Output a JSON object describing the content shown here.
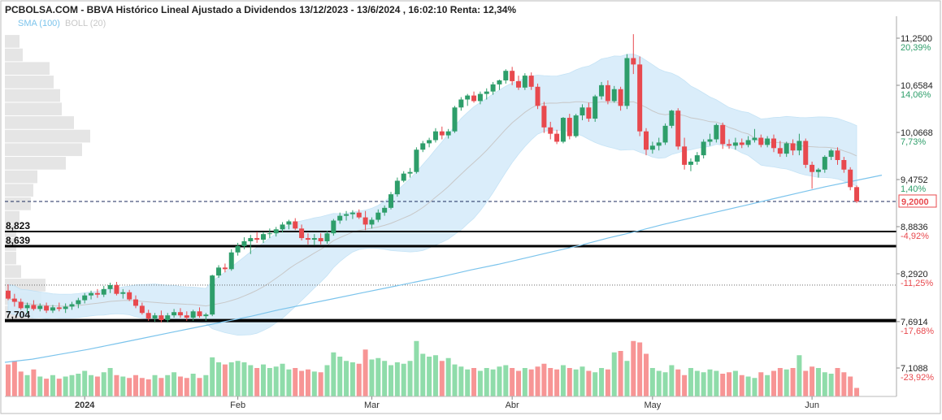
{
  "chart_data": {
    "type": "candlestick",
    "title": "PCBOLSA.COM - BBVA Histórico Lineal Ajustado a Dividendos 13/12/2023 - 13/6/2024 , 16:02:10 Renta: 12,34%",
    "legend": [
      {
        "label": "SMA (100)",
        "color": "#7cc4ec"
      },
      {
        "label": "BOLL (20)",
        "color": "#c8c8c8"
      }
    ],
    "ylim": [
      6.85,
      11.55
    ],
    "last_price": {
      "value": 9.2,
      "label": "9,2000",
      "color": "#e8494e"
    },
    "price_ticks": [
      {
        "value": 11.25,
        "label": "11,2500",
        "pct": "20,39%",
        "pct_color": "#2e9e6a"
      },
      {
        "value": 10.6584,
        "label": "10,6584",
        "pct": "14,06%",
        "pct_color": "#2e9e6a"
      },
      {
        "value": 10.0668,
        "label": "10,0668",
        "pct": "7,73%",
        "pct_color": "#2e9e6a"
      },
      {
        "value": 9.4752,
        "label": "9,4752",
        "pct": "1,40%",
        "pct_color": "#2e9e6a"
      },
      {
        "value": 8.8836,
        "label": "8,8836",
        "pct": "-4,92%",
        "pct_color": "#e8494e"
      },
      {
        "value": 8.292,
        "label": "8,2920",
        "pct": "-11,25%",
        "pct_color": "#e8494e"
      },
      {
        "value": 7.6914,
        "label": "7,6914",
        "pct": "-17,68%",
        "pct_color": "#e8494e"
      },
      {
        "value": 7.1088,
        "label": "7,1088",
        "pct": "-23,92%",
        "pct_color": "#e8494e"
      }
    ],
    "support_levels": [
      {
        "value": 8.823,
        "label": "8,823"
      },
      {
        "value": 8.639,
        "label": "8,639"
      },
      {
        "value": 7.704,
        "label": "7,704"
      }
    ],
    "dotted_level": 8.15,
    "months": [
      {
        "label": "2024",
        "index": 12,
        "bold": true
      },
      {
        "label": "Feb",
        "index": 36
      },
      {
        "label": "Mar",
        "index": 57
      },
      {
        "label": "Abr",
        "index": 79
      },
      {
        "label": "May",
        "index": 101
      },
      {
        "label": "Jun",
        "index": 126
      }
    ],
    "colors": {
      "up": "#2e9e6a",
      "down": "#e8494e",
      "vol_up": "#8fdcaa",
      "vol_down": "#f79595",
      "band": "#d6ecfa",
      "sma": "#7cc4ec",
      "boll_mid": "#c8c8c8"
    },
    "candles": [
      [
        8.08,
        8.16,
        7.96,
        7.98
      ],
      [
        7.98,
        8.04,
        7.88,
        7.94
      ],
      [
        7.94,
        7.98,
        7.84,
        7.86
      ],
      [
        7.86,
        7.93,
        7.8,
        7.9
      ],
      [
        7.9,
        7.96,
        7.83,
        7.85
      ],
      [
        7.85,
        7.92,
        7.82,
        7.89
      ],
      [
        7.89,
        7.93,
        7.8,
        7.83
      ],
      [
        7.83,
        7.9,
        7.8,
        7.87
      ],
      [
        7.87,
        7.93,
        7.82,
        7.85
      ],
      [
        7.85,
        7.92,
        7.8,
        7.88
      ],
      [
        7.88,
        7.94,
        7.84,
        7.91
      ],
      [
        7.91,
        7.99,
        7.86,
        7.96
      ],
      [
        7.96,
        8.05,
        7.92,
        8.02
      ],
      [
        8.02,
        8.08,
        7.97,
        8.05
      ],
      [
        8.05,
        8.1,
        7.99,
        8.03
      ],
      [
        8.03,
        8.14,
        8.0,
        8.1
      ],
      [
        8.1,
        8.18,
        8.05,
        8.15
      ],
      [
        8.15,
        8.19,
        8.02,
        8.04
      ],
      [
        8.04,
        8.1,
        7.98,
        8.06
      ],
      [
        8.06,
        8.09,
        7.95,
        7.97
      ],
      [
        7.97,
        8.02,
        7.86,
        7.89
      ],
      [
        7.89,
        7.93,
        7.78,
        7.8
      ],
      [
        7.8,
        7.84,
        7.7,
        7.73
      ],
      [
        7.73,
        7.8,
        7.69,
        7.77
      ],
      [
        7.77,
        7.83,
        7.68,
        7.71
      ],
      [
        7.71,
        7.8,
        7.68,
        7.77
      ],
      [
        7.77,
        7.85,
        7.74,
        7.81
      ],
      [
        7.81,
        7.86,
        7.74,
        7.77
      ],
      [
        7.77,
        7.82,
        7.7,
        7.74
      ],
      [
        7.74,
        7.84,
        7.7,
        7.82
      ],
      [
        7.82,
        7.87,
        7.74,
        7.76
      ],
      [
        7.76,
        7.8,
        7.7,
        7.78
      ],
      [
        7.78,
        8.28,
        7.76,
        8.27
      ],
      [
        8.27,
        8.4,
        8.24,
        8.37
      ],
      [
        8.37,
        8.42,
        8.31,
        8.35
      ],
      [
        8.35,
        8.6,
        8.33,
        8.56
      ],
      [
        8.56,
        8.68,
        8.52,
        8.64
      ],
      [
        8.64,
        8.75,
        8.6,
        8.7
      ],
      [
        8.7,
        8.78,
        8.54,
        8.74
      ],
      [
        8.74,
        8.82,
        8.68,
        8.72
      ],
      [
        8.72,
        8.82,
        8.68,
        8.79
      ],
      [
        8.79,
        8.86,
        8.74,
        8.8
      ],
      [
        8.8,
        8.88,
        8.76,
        8.85
      ],
      [
        8.85,
        8.94,
        8.81,
        8.91
      ],
      [
        8.91,
        8.97,
        8.85,
        8.95
      ],
      [
        8.95,
        8.99,
        8.84,
        8.86
      ],
      [
        8.86,
        8.91,
        8.71,
        8.74
      ],
      [
        8.74,
        8.8,
        8.66,
        8.72
      ],
      [
        8.72,
        8.79,
        8.65,
        8.74
      ],
      [
        8.74,
        8.8,
        8.66,
        8.7
      ],
      [
        8.7,
        8.83,
        8.67,
        8.8
      ],
      [
        8.8,
        8.98,
        8.77,
        8.96
      ],
      [
        8.96,
        9.06,
        8.92,
        9.02
      ],
      [
        9.02,
        9.08,
        8.96,
        9.04
      ],
      [
        9.04,
        9.09,
        8.98,
        9.06
      ],
      [
        9.06,
        9.1,
        8.98,
        9.0
      ],
      [
        9.0,
        9.08,
        8.84,
        8.91
      ],
      [
        8.91,
        9.0,
        8.86,
        8.97
      ],
      [
        8.97,
        9.1,
        8.94,
        9.06
      ],
      [
        9.06,
        9.15,
        9.02,
        9.12
      ],
      [
        9.12,
        9.32,
        9.1,
        9.29
      ],
      [
        9.29,
        9.5,
        9.26,
        9.46
      ],
      [
        9.46,
        9.58,
        9.44,
        9.55
      ],
      [
        9.55,
        9.62,
        9.5,
        9.57
      ],
      [
        9.57,
        9.88,
        9.55,
        9.85
      ],
      [
        9.85,
        9.96,
        9.82,
        9.93
      ],
      [
        9.93,
        10.0,
        9.88,
        9.97
      ],
      [
        9.97,
        10.12,
        9.94,
        10.08
      ],
      [
        10.08,
        10.14,
        9.98,
        10.03
      ],
      [
        10.03,
        10.11,
        9.99,
        10.08
      ],
      [
        10.08,
        10.4,
        10.06,
        10.38
      ],
      [
        10.38,
        10.51,
        10.34,
        10.48
      ],
      [
        10.48,
        10.55,
        10.4,
        10.53
      ],
      [
        10.53,
        10.58,
        10.44,
        10.46
      ],
      [
        10.46,
        10.58,
        10.42,
        10.55
      ],
      [
        10.55,
        10.62,
        10.48,
        10.58
      ],
      [
        10.58,
        10.7,
        10.54,
        10.67
      ],
      [
        10.67,
        10.73,
        10.6,
        10.72
      ],
      [
        10.72,
        10.86,
        10.68,
        10.84
      ],
      [
        10.84,
        10.89,
        10.66,
        10.71
      ],
      [
        10.71,
        10.78,
        10.6,
        10.63
      ],
      [
        10.63,
        10.81,
        10.6,
        10.78
      ],
      [
        10.78,
        10.82,
        10.6,
        10.64
      ],
      [
        10.64,
        10.68,
        10.36,
        10.4
      ],
      [
        10.4,
        10.45,
        10.06,
        10.13
      ],
      [
        10.13,
        10.2,
        9.98,
        10.05
      ],
      [
        10.05,
        10.1,
        9.92,
        9.95
      ],
      [
        9.95,
        10.26,
        9.93,
        10.25
      ],
      [
        10.25,
        10.3,
        9.98,
        10.02
      ],
      [
        10.02,
        10.3,
        10.0,
        10.28
      ],
      [
        10.28,
        10.42,
        10.22,
        10.38
      ],
      [
        10.38,
        10.44,
        10.2,
        10.24
      ],
      [
        10.24,
        10.54,
        10.2,
        10.52
      ],
      [
        10.52,
        10.7,
        10.48,
        10.66
      ],
      [
        10.66,
        10.72,
        10.42,
        10.46
      ],
      [
        10.46,
        10.65,
        10.44,
        10.61
      ],
      [
        10.61,
        10.64,
        10.34,
        10.4
      ],
      [
        10.4,
        11.05,
        10.36,
        11.0
      ],
      [
        11.0,
        11.3,
        10.8,
        10.92
      ],
      [
        10.92,
        11.02,
        10.02,
        10.08
      ],
      [
        10.08,
        10.12,
        9.78,
        9.85
      ],
      [
        9.85,
        9.95,
        9.8,
        9.9
      ],
      [
        9.9,
        10.0,
        9.84,
        9.94
      ],
      [
        9.94,
        10.18,
        9.91,
        10.15
      ],
      [
        10.15,
        10.35,
        10.12,
        10.34
      ],
      [
        10.34,
        10.37,
        9.85,
        9.89
      ],
      [
        9.89,
        10.0,
        9.6,
        9.66
      ],
      [
        9.66,
        9.74,
        9.58,
        9.7
      ],
      [
        9.7,
        9.82,
        9.66,
        9.78
      ],
      [
        9.78,
        9.98,
        9.74,
        9.95
      ],
      [
        9.95,
        10.05,
        9.9,
        9.98
      ],
      [
        9.98,
        10.18,
        9.94,
        10.16
      ],
      [
        10.16,
        10.19,
        9.86,
        9.92
      ],
      [
        9.92,
        9.98,
        9.86,
        9.9
      ],
      [
        9.9,
        10.0,
        9.85,
        9.94
      ],
      [
        9.94,
        9.99,
        9.87,
        9.91
      ],
      [
        9.91,
        10.02,
        9.88,
        9.97
      ],
      [
        9.97,
        10.11,
        9.94,
        10.0
      ],
      [
        10.0,
        10.04,
        9.88,
        9.91
      ],
      [
        9.91,
        10.02,
        9.88,
        9.99
      ],
      [
        9.99,
        10.04,
        9.82,
        9.87
      ],
      [
        9.87,
        9.96,
        9.76,
        9.8
      ],
      [
        9.8,
        9.95,
        9.76,
        9.93
      ],
      [
        9.93,
        9.98,
        9.78,
        9.84
      ],
      [
        9.84,
        10.05,
        9.78,
        9.96
      ],
      [
        9.96,
        9.99,
        9.62,
        9.66
      ],
      [
        9.66,
        9.7,
        9.36,
        9.57
      ],
      [
        9.57,
        9.62,
        9.5,
        9.6
      ],
      [
        9.6,
        9.78,
        9.56,
        9.76
      ],
      [
        9.76,
        9.86,
        9.72,
        9.84
      ],
      [
        9.84,
        9.88,
        9.66,
        9.72
      ],
      [
        9.72,
        9.76,
        9.56,
        9.6
      ],
      [
        9.6,
        9.63,
        9.34,
        9.38
      ],
      [
        9.38,
        9.4,
        9.18,
        9.2
      ]
    ],
    "volume": [
      45,
      50,
      35,
      30,
      38,
      28,
      25,
      30,
      25,
      28,
      30,
      32,
      36,
      30,
      28,
      34,
      40,
      30,
      28,
      26,
      30,
      26,
      24,
      30,
      26,
      30,
      34,
      28,
      26,
      32,
      26,
      30,
      55,
      48,
      45,
      48,
      50,
      48,
      44,
      40,
      45,
      40,
      42,
      46,
      38,
      40,
      36,
      38,
      35,
      34,
      44,
      62,
      56,
      50,
      48,
      46,
      66,
      52,
      54,
      50,
      44,
      48,
      46,
      50,
      78,
      60,
      56,
      58,
      50,
      54,
      45,
      42,
      38,
      40,
      36,
      40,
      38,
      42,
      44,
      40,
      36,
      40,
      38,
      42,
      46,
      40,
      38,
      44,
      40,
      38,
      42,
      36,
      34,
      40,
      38,
      62,
      64,
      50,
      78,
      76,
      60,
      40,
      36,
      34,
      44,
      38,
      30,
      40,
      36,
      34,
      38,
      36,
      32,
      34,
      36,
      30,
      28,
      26,
      34,
      30,
      36,
      40,
      38,
      40,
      58,
      36,
      42,
      40,
      34,
      32,
      40,
      34,
      28,
      12
    ],
    "volume_max": 80,
    "boll_width": [
      0.18,
      0.18,
      0.17,
      0.17,
      0.17,
      0.16,
      0.16,
      0.15,
      0.15,
      0.15,
      0.15,
      0.15,
      0.15,
      0.15,
      0.15,
      0.16,
      0.16,
      0.16,
      0.17,
      0.18,
      0.2,
      0.21,
      0.22,
      0.23,
      0.23,
      0.23,
      0.23,
      0.22,
      0.22,
      0.22,
      0.22,
      0.22,
      0.3,
      0.34,
      0.38,
      0.42,
      0.46,
      0.49,
      0.52,
      0.54,
      0.55,
      0.56,
      0.56,
      0.56,
      0.55,
      0.53,
      0.5,
      0.47,
      0.44,
      0.41,
      0.38,
      0.34,
      0.3,
      0.27,
      0.25,
      0.24,
      0.24,
      0.25,
      0.27,
      0.3,
      0.34,
      0.38,
      0.42,
      0.46,
      0.5,
      0.54,
      0.57,
      0.6,
      0.63,
      0.66,
      0.68,
      0.7,
      0.7,
      0.7,
      0.68,
      0.65,
      0.62,
      0.58,
      0.54,
      0.5,
      0.46,
      0.43,
      0.4,
      0.37,
      0.35,
      0.34,
      0.34,
      0.35,
      0.37,
      0.4,
      0.43,
      0.46,
      0.5,
      0.54,
      0.56,
      0.58,
      0.59,
      0.6,
      0.6,
      0.6,
      0.59,
      0.58,
      0.56,
      0.54,
      0.51,
      0.48,
      0.44,
      0.4,
      0.37,
      0.34,
      0.31,
      0.28,
      0.26,
      0.25,
      0.25,
      0.26,
      0.27,
      0.28,
      0.29,
      0.3,
      0.31,
      0.32,
      0.33,
      0.34,
      0.35,
      0.36,
      0.37,
      0.38,
      0.38,
      0.38,
      0.38,
      0.38,
      0.38,
      0.38
    ],
    "sma_line": [
      [
        7.18,
        7.22,
        7.28,
        7.34,
        7.41,
        7.48,
        7.55,
        7.62,
        7.69,
        7.76,
        7.84,
        7.91,
        7.98,
        8.05,
        8.12,
        8.19,
        8.26,
        8.34,
        8.41,
        8.49,
        8.57,
        8.65,
        8.74,
        8.82,
        8.91,
        8.99,
        9.07,
        9.15,
        9.23,
        9.31,
        9.39,
        9.46,
        9.53
      ]
    ],
    "volume_profile": [
      [
        10.95,
        10.78,
        55
      ],
      [
        10.78,
        10.61,
        60
      ],
      [
        10.61,
        10.44,
        68
      ],
      [
        10.44,
        10.27,
        70
      ],
      [
        10.27,
        10.1,
        85
      ],
      [
        10.1,
        9.93,
        105
      ],
      [
        9.93,
        9.76,
        95
      ],
      [
        9.76,
        9.59,
        75
      ],
      [
        9.59,
        9.42,
        40
      ],
      [
        9.42,
        9.25,
        35
      ],
      [
        9.25,
        9.08,
        32
      ],
      [
        9.08,
        8.91,
        18
      ],
      [
        8.91,
        8.74,
        14
      ],
      [
        8.74,
        8.57,
        14
      ],
      [
        8.57,
        8.4,
        14
      ],
      [
        8.4,
        8.23,
        20
      ],
      [
        8.23,
        8.06,
        50
      ],
      [
        8.06,
        7.89,
        45
      ],
      [
        7.89,
        7.72,
        35
      ],
      [
        11.12,
        10.95,
        22
      ],
      [
        11.29,
        11.12,
        18
      ]
    ]
  }
}
